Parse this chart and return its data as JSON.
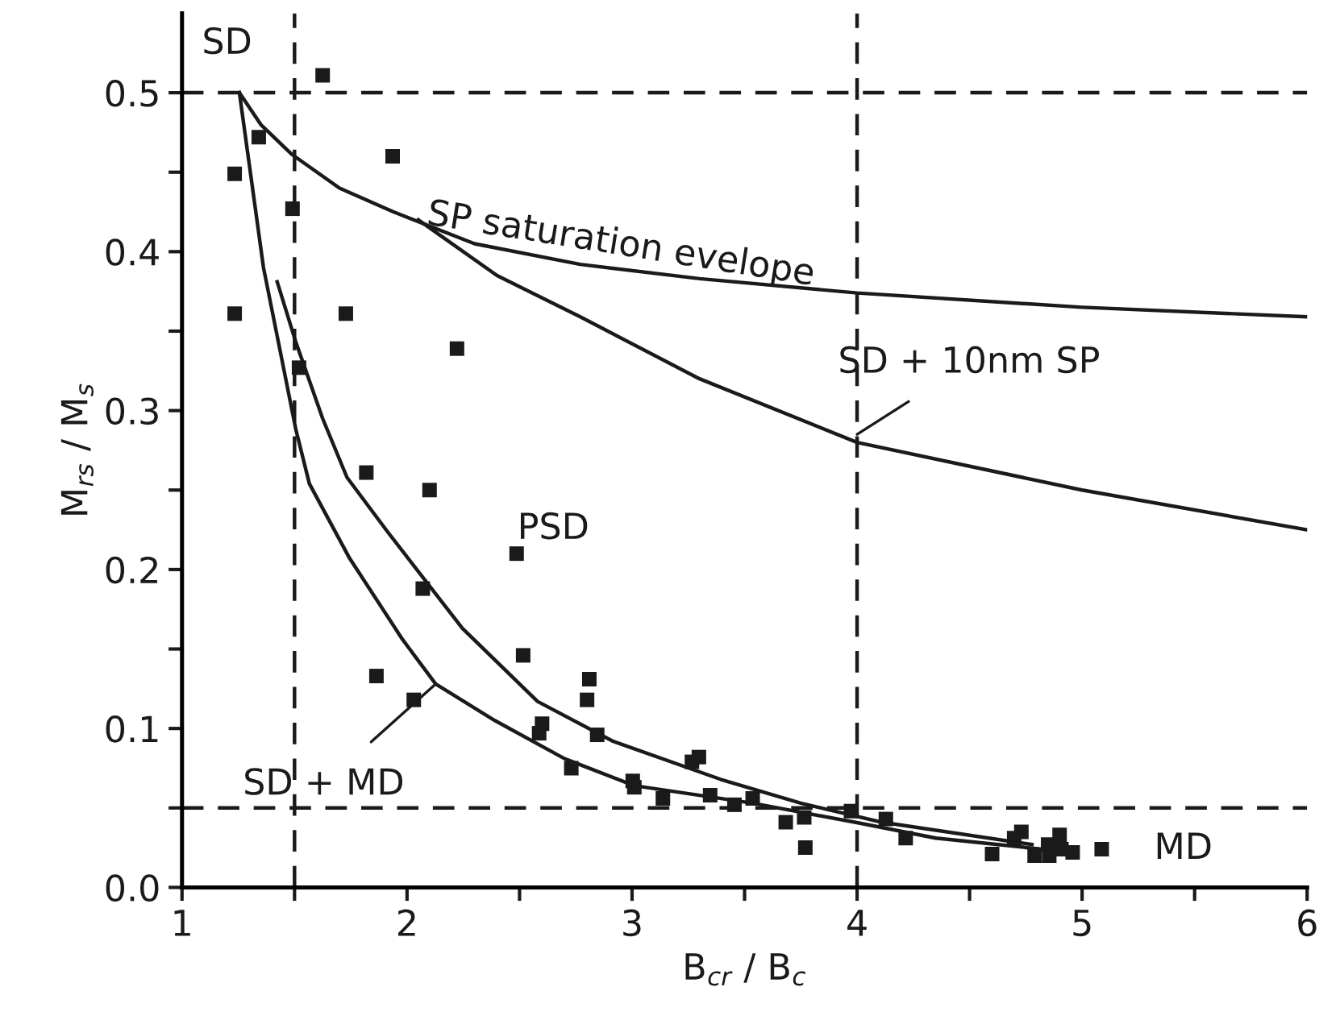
{
  "chart_data": {
    "type": "scatter",
    "xlabel": "B$_{cr}$ / B$_{c}$",
    "ylabel": "M$_{rs}$ / M$_{s}$",
    "xlim": [
      1,
      6
    ],
    "ylim": [
      0,
      0.55
    ],
    "xticks": [
      1,
      {
        "value": 1.5,
        "label": null
      },
      2,
      {
        "value": 2.5,
        "label": null
      },
      3,
      {
        "value": 3.5,
        "label": null
      },
      4,
      {
        "value": 4.5,
        "label": null
      },
      5,
      {
        "value": 5.5,
        "label": null
      },
      6
    ],
    "yticks": [
      {
        "value": 0,
        "label": "0.0"
      },
      {
        "value": 0.05,
        "label": null
      },
      0.1,
      {
        "value": 0.15,
        "label": null
      },
      0.2,
      {
        "value": 0.25,
        "label": null
      },
      0.3,
      {
        "value": 0.35,
        "label": null
      },
      0.4,
      {
        "value": 0.45,
        "label": null
      },
      0.5
    ],
    "grid": false,
    "legend": false,
    "series": [
      {
        "marker": "square",
        "color": "#1a1a1a",
        "x": [
          1.625,
          1.341,
          1.936,
          1.234,
          1.491,
          1.234,
          1.728,
          2.222,
          1.52,
          1.819,
          2.1,
          2.487,
          2.07,
          2.516,
          1.864,
          2.81,
          2.03,
          2.8,
          2.6,
          2.587,
          2.845,
          2.73,
          3.003,
          3.01,
          3.137,
          3.266,
          3.297,
          3.347,
          3.455,
          3.536,
          3.683,
          3.765,
          3.77,
          3.973,
          4.128,
          4.216,
          4.6,
          4.698,
          4.73,
          4.789,
          4.849,
          4.854,
          4.9,
          4.908,
          4.958,
          5.087
        ],
        "values": [
          0.511,
          0.472,
          0.46,
          0.449,
          0.427,
          0.361,
          0.361,
          0.339,
          0.327,
          0.261,
          0.25,
          0.21,
          0.188,
          0.146,
          0.133,
          0.131,
          0.118,
          0.118,
          0.103,
          0.097,
          0.096,
          0.075,
          0.067,
          0.063,
          0.056,
          0.079,
          0.082,
          0.058,
          0.052,
          0.056,
          0.041,
          0.044,
          0.025,
          0.048,
          0.043,
          0.031,
          0.021,
          0.031,
          0.035,
          0.02,
          0.027,
          0.02,
          0.033,
          0.024,
          0.022,
          0.024
        ]
      },
      {
        "type": "line",
        "marker": "none",
        "line_style": "solid",
        "color": "#1a1a1a",
        "x": [
          1.255,
          1.35,
          1.49,
          1.7,
          1.94,
          2.3,
          2.77,
          3.3,
          4,
          5,
          6
        ],
        "values": [
          0.5,
          0.48,
          0.461,
          0.44,
          0.425,
          0.405,
          0.392,
          0.383,
          0.374,
          0.365,
          0.359
        ]
      },
      {
        "type": "line",
        "marker": "none",
        "line_style": "solid",
        "color": "#1a1a1a",
        "x": [
          2.05,
          2.4,
          2.77,
          3.3,
          4,
          5,
          6
        ],
        "values": [
          0.42,
          0.385,
          0.359,
          0.32,
          0.28,
          0.25,
          0.225
        ]
      },
      {
        "type": "line",
        "marker": "none",
        "line_style": "solid",
        "color": "#1a1a1a",
        "x": [
          1.255,
          1.362,
          1.434,
          1.506,
          1.566,
          1.745,
          1.98,
          2.127,
          2.39,
          2.7,
          3.01,
          3.536,
          3.99,
          4.35,
          4.825
        ],
        "values": [
          0.5,
          0.39,
          0.339,
          0.288,
          0.254,
          0.207,
          0.156,
          0.128,
          0.105,
          0.081,
          0.064,
          0.053,
          0.041,
          0.031,
          0.024
        ]
      },
      {
        "type": "line",
        "marker": "none",
        "line_style": "solid",
        "color": "#1a1a1a",
        "x": [
          1.423,
          1.506,
          1.625,
          1.733,
          1.912,
          2.246,
          2.58,
          2.915,
          3.393,
          3.75,
          4.11,
          4.777
        ],
        "values": [
          0.381,
          0.343,
          0.295,
          0.258,
          0.224,
          0.163,
          0.117,
          0.092,
          0.068,
          0.053,
          0.041,
          0.027
        ]
      }
    ],
    "ref_lines": [
      {
        "axis": "x",
        "value": 1.5,
        "color": "#1a1a1a",
        "line_style": "dashed"
      },
      {
        "axis": "x",
        "value": 4,
        "color": "#1a1a1a",
        "line_style": "dashed"
      },
      {
        "axis": "y",
        "value": 0.5,
        "color": "#1a1a1a",
        "line_style": "dashed"
      },
      {
        "axis": "y",
        "value": 0.05,
        "color": "#1a1a1a",
        "line_style": "dashed"
      }
    ],
    "annotations": [
      "SD",
      "PSD",
      "MD",
      "SP saturation evelope",
      {
        "text": "SD + 10nm SP",
        "x": 4.0,
        "y": 0.285
      },
      {
        "text": "SD + MD",
        "x": 2.127,
        "y": 0.128
      }
    ]
  }
}
